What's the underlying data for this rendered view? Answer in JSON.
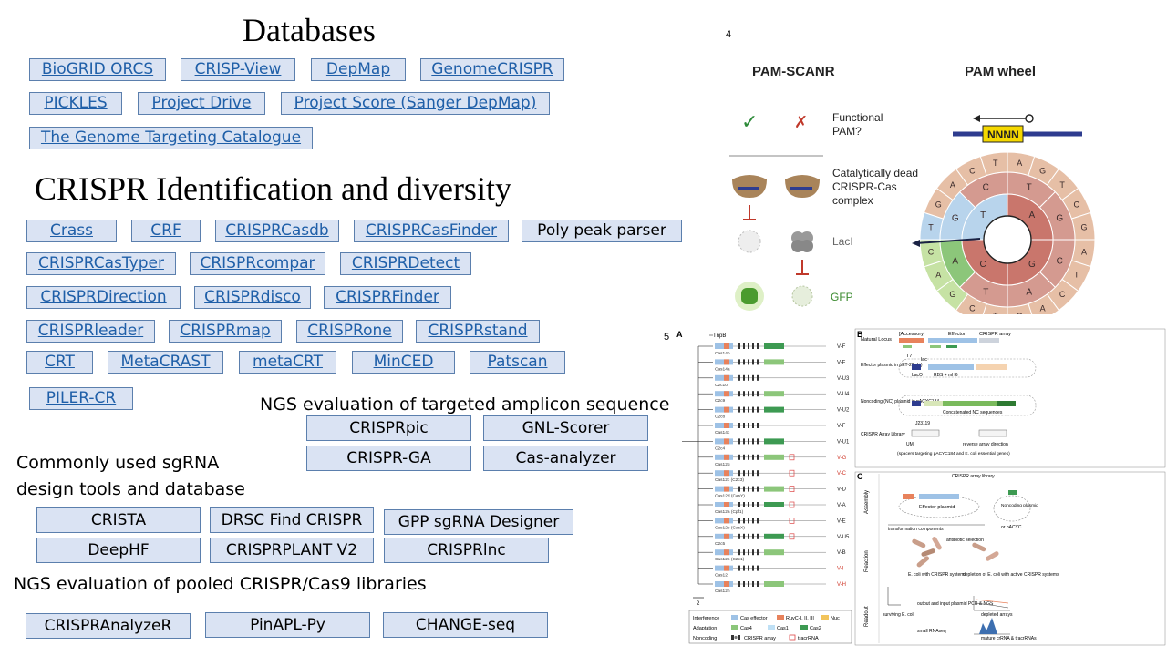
{
  "headings": {
    "databases": "Databases",
    "crispr_identification": "CRISPR Identification and diversity",
    "ngs_amplicon": "NGS evaluation of targeted amplicon sequence",
    "sgrna_design_line1": "Commonly used sgRNA",
    "sgrna_design_line2": "design tools and database",
    "ngs_pooled": "NGS evaluation of pooled CRISPR/Cas9 libraries"
  },
  "databases": [
    "BioGRID ORCS",
    "CRISP-View",
    "DepMap",
    "GenomeCRISPR",
    "PICKLES",
    "Project Drive",
    "Project Score (Sanger DepMap)",
    "The Genome Targeting Catalogue"
  ],
  "crispr_tools": [
    "Crass",
    "CRF",
    "CRISPRCasdb",
    "CRISPRCasFinder",
    "Poly peak parser",
    "CRISPRCasTyper",
    "CRISPRcompar",
    "CRISPRDetect",
    "CRISPRDirection",
    "CRISPRdisco",
    "CRISPRFinder",
    "CRISPRleader",
    "CRISPRmap",
    "CRISPRone",
    "CRISPRstand",
    "CRT",
    "MetaCRAST",
    "metaCRT",
    "MinCED",
    "Patscan",
    "PILER-CR"
  ],
  "amplicon_tools": [
    "CRISPRpic",
    "GNL-Scorer",
    "CRISPR-GA",
    "Cas-analyzer"
  ],
  "sgrna_tools": [
    "CRISTA",
    "DRSC Find CRISPR",
    "GPP sgRNA Designer",
    "DeepHF",
    "CRISPRPLANT V2",
    "CRISPRlnc"
  ],
  "pooled_tools": [
    "CRISPRAnalyzeR",
    "PinAPL-Py",
    "CHANGE-seq"
  ],
  "figure4": {
    "number": "4",
    "title_left": "PAM-SCANR",
    "title_right": "PAM wheel",
    "check_mark": "✓",
    "cross_mark": "✗",
    "label_functional": [
      "Functional",
      "PAM?"
    ],
    "label_complex": [
      "Catalytically dead",
      "CRISPR-Cas",
      "complex"
    ],
    "label_laci": "LacI",
    "label_gfp": "GFP",
    "pam_box": "NNNN",
    "wheel_outer_letters": [
      "A",
      "G",
      "T",
      "C",
      "G",
      "A",
      "T",
      "C",
      "A",
      "G",
      "T",
      "C",
      "G",
      "A",
      "C",
      "T",
      "G",
      "A",
      "C",
      "T"
    ],
    "wheel_mid_letters": [
      "T",
      "G",
      "C",
      "A",
      "T",
      "A",
      "G",
      "C"
    ],
    "wheel_inner_letters": [
      "A",
      "G",
      "C",
      "T"
    ]
  },
  "figure5": {
    "number": "5",
    "panel_a": "A",
    "panel_b": "B",
    "panel_c": "C",
    "tree_root": "TnpB",
    "subtypes": [
      "V-F",
      "V-F",
      "V-U3",
      "V-U4",
      "V-U2",
      "V-F",
      "V-U1",
      "V-G",
      "V-C",
      "V-D",
      "V-A",
      "V-E",
      "V-U5",
      "V-B",
      "V-I",
      "V-H"
    ],
    "protein_labels": [
      "Cas14b",
      "Cas14a",
      "C2c10",
      "C2c9",
      "C2c8",
      "Cas14c",
      "C2c4",
      "Cas12g",
      "Cas12c (C2c3)",
      "Cas12d (CasY)",
      "Cas12a (Cpf1)",
      "Cas12e (CasX)",
      "C2c5",
      "Cas12b (C2c1)",
      "Cas12i",
      "Cas12h"
    ],
    "scale": "2",
    "legend": {
      "rows": [
        "Interference",
        "Adaptation",
        "Noncoding"
      ],
      "items": [
        "Cas effector",
        "RuvC-I, II, III",
        "Nuc",
        "Cas4",
        "Cas1",
        "Cas2",
        "CRISPR array",
        "tracrRNA"
      ]
    },
    "panel_b_rows": [
      "Natural Locus",
      "Effector plasmid in pET-28a(+)",
      "Noncoding (NC) plasmid in pACYC184",
      "CRISPR Array Library"
    ],
    "panel_b_labels": [
      "[Accessory]",
      "Effector",
      "CRISPR array",
      "T7",
      "lac",
      "LacO",
      "RBS + mH6",
      "Concatenated NC sequences",
      "J23119",
      "UMI",
      "reverse array direction",
      "(spacers targeting pACYC184 and E. coli essential genes)"
    ],
    "panel_c_rows": [
      "Assembly",
      "Reaction",
      "Readout"
    ],
    "panel_c_labels": [
      "CRISPR array library",
      "Effector plasmid",
      "Noncoding plasmid",
      "or pACYC",
      "transformation components",
      "antibiotic selection",
      "E. coli with CRISPR systems",
      "depletion of E. coli with active CRISPR systems",
      "surviving E. coli",
      "output and input plasmid PCR & NGS",
      "depleted arrays",
      "small RNAseq",
      "mature crRNA & tracrRNAs"
    ]
  }
}
